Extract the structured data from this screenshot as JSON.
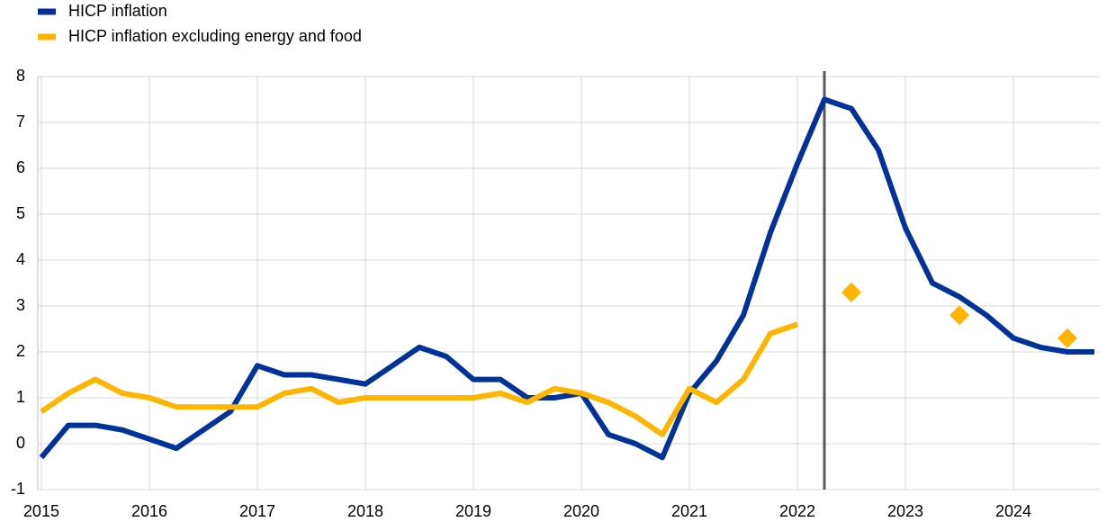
{
  "chart_data": {
    "type": "line",
    "x": [
      2015,
      2015.25,
      2015.5,
      2015.75,
      2016,
      2016.25,
      2016.5,
      2016.75,
      2017,
      2017.25,
      2017.5,
      2017.75,
      2018,
      2018.25,
      2018.5,
      2018.75,
      2019,
      2019.25,
      2019.5,
      2019.75,
      2020,
      2020.25,
      2020.5,
      2020.75,
      2021,
      2021.25,
      2021.5,
      2021.75,
      2022,
      2022.25,
      2022.5,
      2022.75,
      2023,
      2023.25,
      2023.5,
      2023.75,
      2024,
      2024.25,
      2024.5,
      2024.75
    ],
    "series": [
      {
        "name": "HICP inflation",
        "color": "#003299",
        "values": [
          -0.3,
          0.4,
          0.4,
          0.3,
          0.1,
          -0.1,
          0.3,
          0.7,
          1.7,
          1.5,
          1.5,
          1.4,
          1.3,
          1.7,
          2.1,
          1.9,
          1.4,
          1.4,
          1.0,
          1.0,
          1.1,
          0.2,
          0.0,
          -0.3,
          1.1,
          1.8,
          2.8,
          4.6,
          6.1,
          7.5,
          7.3,
          6.4,
          4.7,
          3.5,
          3.2,
          2.8,
          2.3,
          2.1,
          2.0,
          2.0
        ]
      },
      {
        "name": "HICP inflation excluding energy and food",
        "color": "#ffb400",
        "values": [
          0.7,
          1.1,
          1.4,
          1.1,
          1.0,
          0.8,
          0.8,
          0.8,
          0.8,
          1.1,
          1.2,
          0.9,
          1.0,
          1.0,
          1.0,
          1.0,
          1.0,
          1.1,
          0.9,
          1.2,
          1.1,
          0.9,
          0.6,
          0.2,
          1.2,
          0.9,
          1.4,
          2.4,
          2.6,
          null,
          null,
          null,
          null,
          null,
          null,
          null,
          null,
          null,
          null,
          null
        ]
      }
    ],
    "projections": {
      "color": "#ffb400",
      "x": [
        2022.5,
        2023.5,
        2024.5
      ],
      "values": [
        3.3,
        2.8,
        2.3
      ]
    },
    "vline": 2022.25,
    "xlim": [
      2014.967,
      2024.8
    ],
    "xticks": [
      2015,
      2016,
      2017,
      2018,
      2019,
      2020,
      2021,
      2022,
      2023,
      2024
    ],
    "ylim": [
      -1,
      8
    ],
    "yticks": [
      -1,
      0,
      1,
      2,
      3,
      4,
      5,
      6,
      7,
      8
    ],
    "grid": true
  }
}
